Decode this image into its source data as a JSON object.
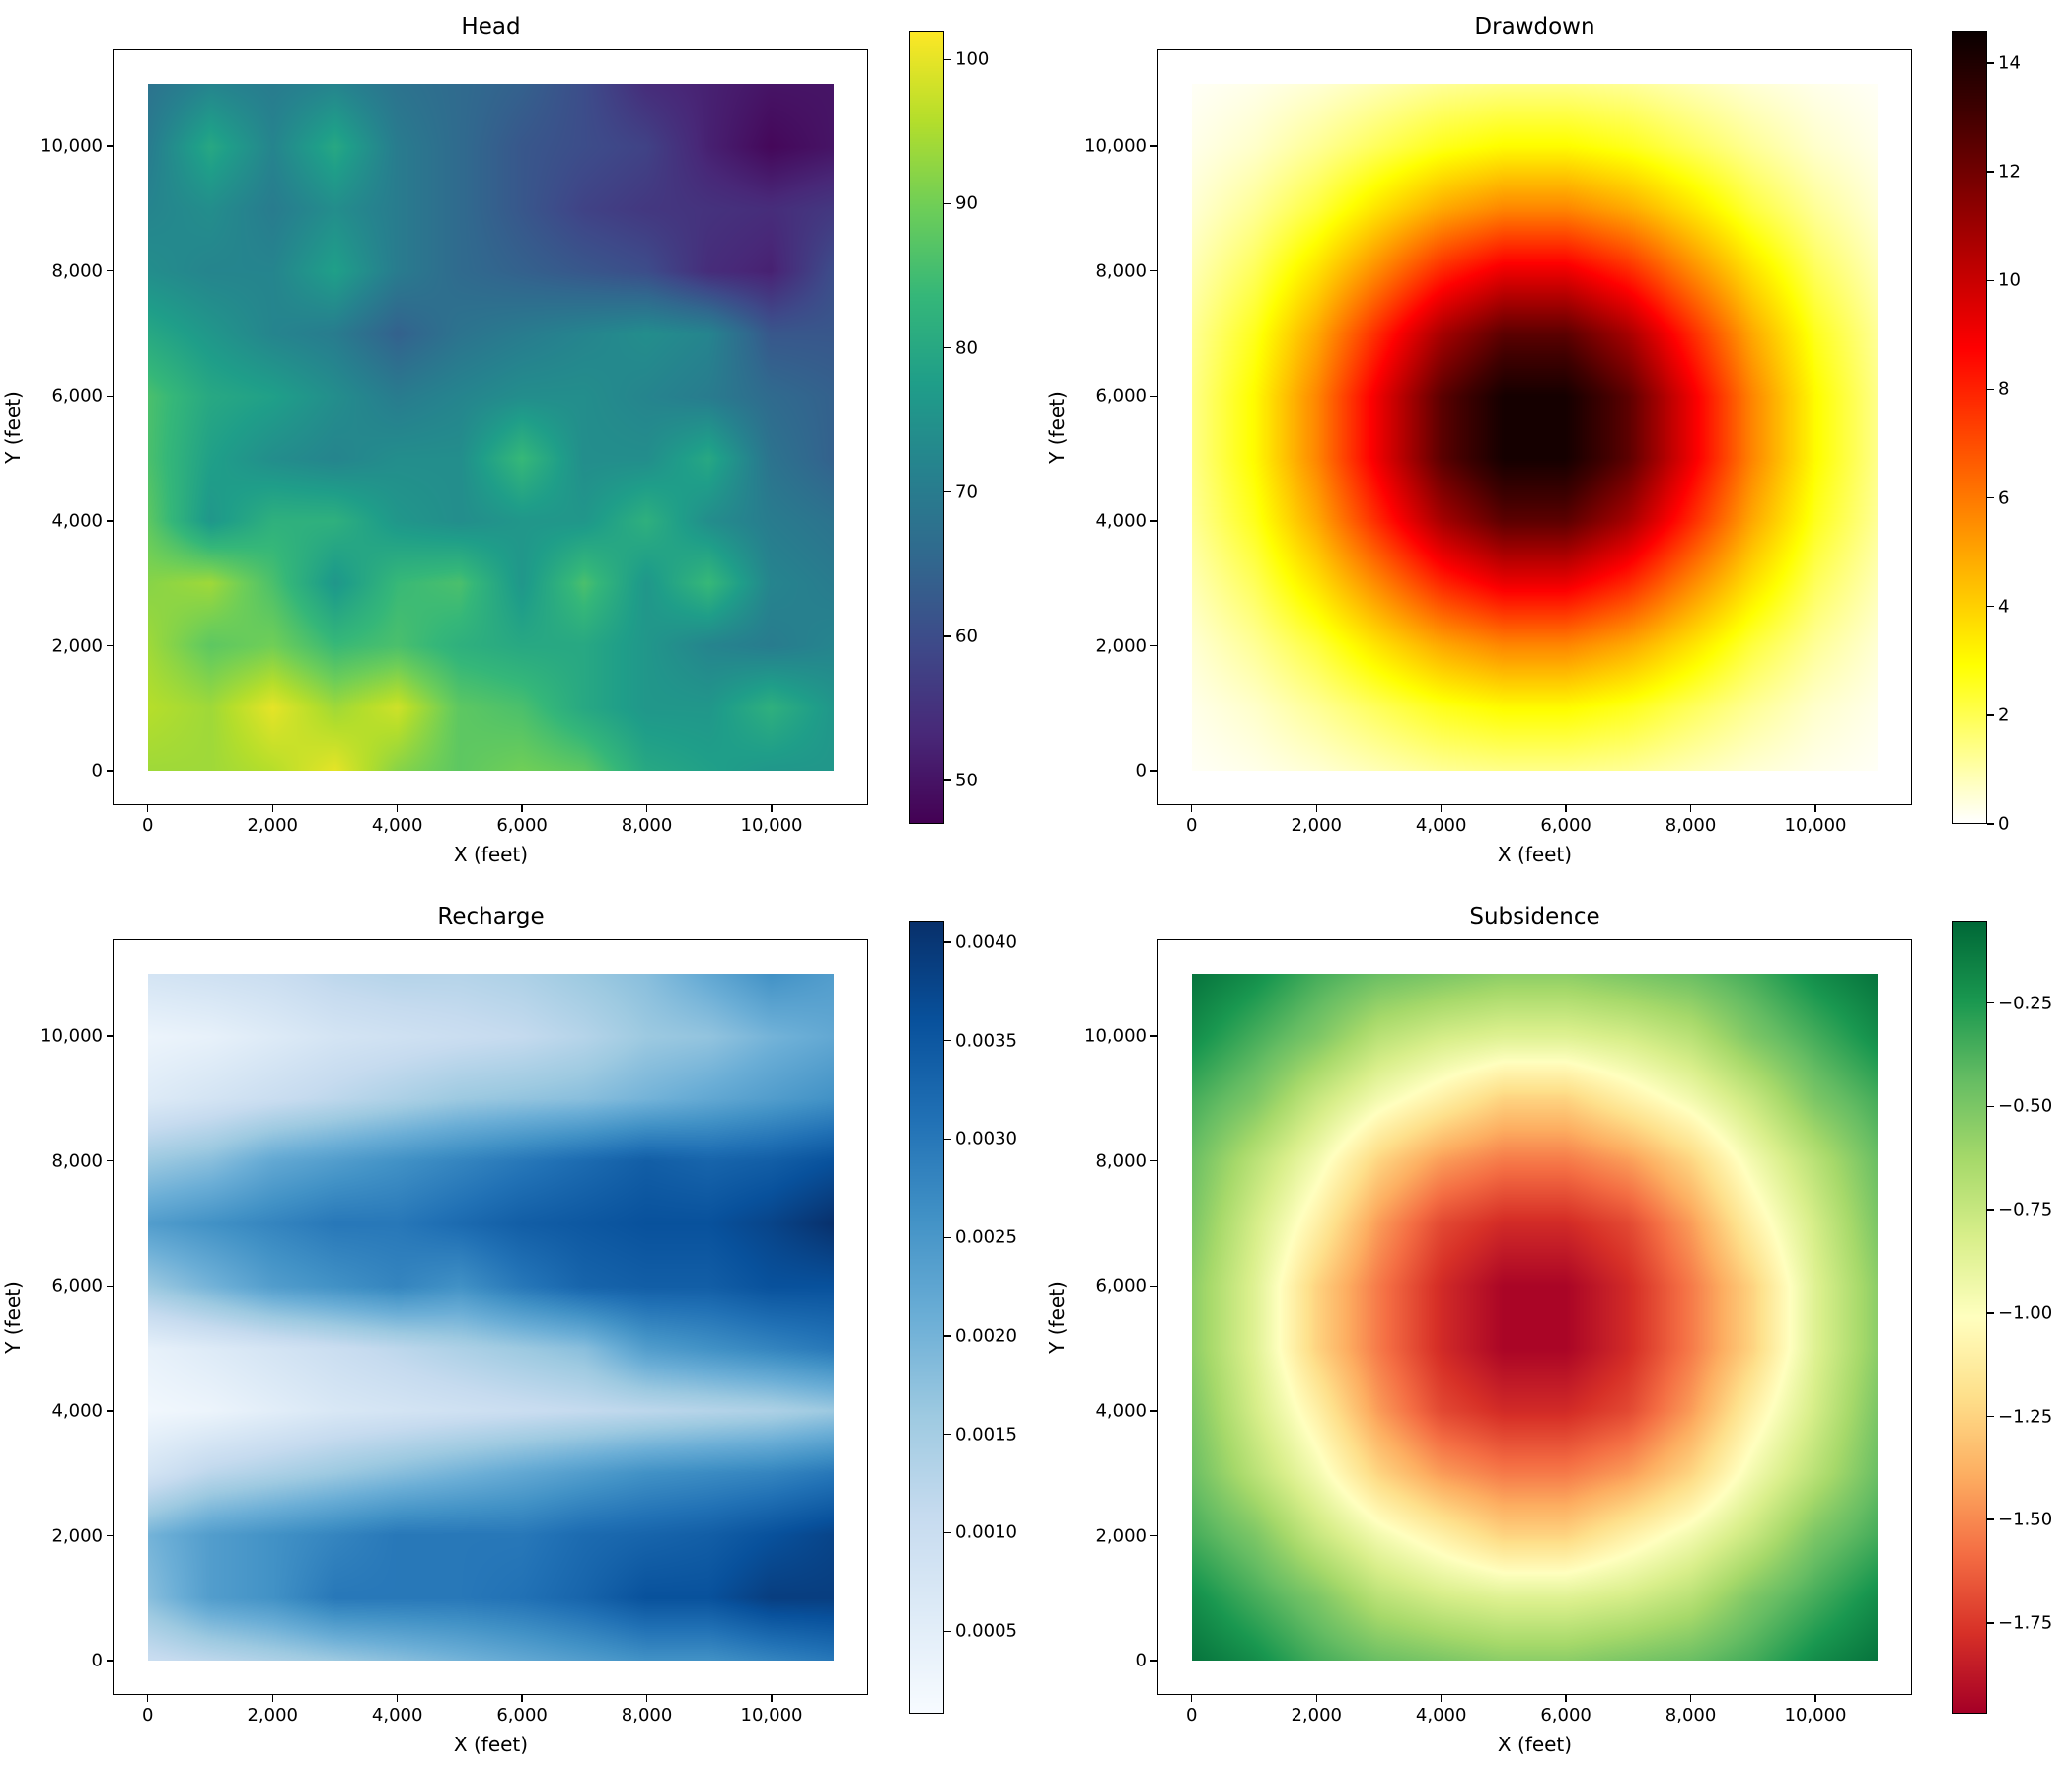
{
  "chart_data": [
    {
      "type": "heatmap",
      "title": "Head",
      "xlabel": "X (feet)",
      "ylabel": "Y (feet)",
      "xlim": [
        -550,
        11550
      ],
      "ylim": [
        -550,
        11550
      ],
      "xticks": [
        0,
        2000,
        4000,
        6000,
        8000,
        10000
      ],
      "xtick_labels": [
        "0",
        "2,000",
        "4,000",
        "6,000",
        "8,000",
        "10,000"
      ],
      "yticks": [
        0,
        2000,
        4000,
        6000,
        8000,
        10000
      ],
      "ytick_labels": [
        "0",
        "2,000",
        "4,000",
        "6,000",
        "8,000",
        "10,000"
      ],
      "colormap": "viridis",
      "clim": [
        47,
        102
      ],
      "cbar_ticks": [
        50,
        60,
        70,
        80,
        90,
        100
      ],
      "cbar_tick_labels": [
        "50",
        "60",
        "70",
        "80",
        "90",
        "100"
      ],
      "grid": false,
      "x": [
        0,
        1000,
        2000,
        3000,
        4000,
        5000,
        6000,
        7000,
        8000,
        9000,
        10000,
        11000
      ],
      "y": [
        11000,
        10000,
        9000,
        8000,
        7000,
        6000,
        5000,
        4000,
        3000,
        2000,
        1000,
        0
      ],
      "z": [
        [
          68,
          72,
          70,
          72,
          68,
          66,
          64,
          60,
          54,
          52,
          50,
          50
        ],
        [
          70,
          80,
          72,
          80,
          70,
          66,
          62,
          60,
          58,
          52,
          48,
          50
        ],
        [
          72,
          74,
          70,
          74,
          70,
          66,
          62,
          58,
          56,
          55,
          54,
          56
        ],
        [
          74,
          72,
          72,
          78,
          70,
          66,
          64,
          62,
          60,
          54,
          52,
          60
        ],
        [
          80,
          76,
          72,
          70,
          64,
          68,
          70,
          72,
          74,
          72,
          62,
          62
        ],
        [
          86,
          80,
          78,
          74,
          70,
          72,
          74,
          74,
          72,
          70,
          66,
          64
        ],
        [
          86,
          78,
          74,
          72,
          74,
          74,
          84,
          74,
          74,
          80,
          68,
          64
        ],
        [
          88,
          76,
          82,
          82,
          76,
          74,
          76,
          76,
          82,
          74,
          70,
          68
        ],
        [
          92,
          94,
          86,
          76,
          84,
          86,
          76,
          86,
          76,
          84,
          72,
          70
        ],
        [
          94,
          88,
          90,
          84,
          86,
          82,
          80,
          80,
          76,
          72,
          70,
          72
        ],
        [
          96,
          94,
          100,
          94,
          98,
          88,
          86,
          80,
          76,
          76,
          82,
          76
        ],
        [
          94,
          94,
          96,
          100,
          92,
          88,
          90,
          88,
          80,
          78,
          76,
          76
        ]
      ]
    },
    {
      "type": "heatmap",
      "title": "Drawdown",
      "xlabel": "X (feet)",
      "ylabel": "Y (feet)",
      "xlim": [
        -550,
        11550
      ],
      "ylim": [
        -550,
        11550
      ],
      "xticks": [
        0,
        2000,
        4000,
        6000,
        8000,
        10000
      ],
      "xtick_labels": [
        "0",
        "2,000",
        "4,000",
        "6,000",
        "8,000",
        "10,000"
      ],
      "yticks": [
        0,
        2000,
        4000,
        6000,
        8000,
        10000
      ],
      "ytick_labels": [
        "0",
        "2,000",
        "4,000",
        "6,000",
        "8,000",
        "10,000"
      ],
      "colormap": "hot_r",
      "clim": [
        0,
        14.6
      ],
      "cbar_ticks": [
        0,
        2,
        4,
        6,
        8,
        10,
        12,
        14
      ],
      "cbar_tick_labels": [
        "0",
        "2",
        "4",
        "6",
        "8",
        "10",
        "12",
        "14"
      ],
      "grid": false,
      "x": [
        0,
        1000,
        2000,
        3000,
        4000,
        5000,
        6000,
        7000,
        8000,
        9000,
        10000,
        11000
      ],
      "y": [
        11000,
        10000,
        9000,
        8000,
        7000,
        6000,
        5000,
        4000,
        3000,
        2000,
        1000,
        0
      ],
      "z": [
        [
          0.1,
          0.25,
          0.5,
          0.85,
          1.2,
          1.35,
          1.35,
          1.2,
          0.85,
          0.5,
          0.25,
          0.1
        ],
        [
          0.25,
          0.6,
          1.2,
          1.9,
          2.6,
          3.0,
          3.0,
          2.6,
          1.9,
          1.2,
          0.6,
          0.25
        ],
        [
          0.5,
          1.2,
          2.2,
          3.6,
          4.9,
          5.7,
          5.7,
          4.9,
          3.6,
          2.2,
          1.2,
          0.5
        ],
        [
          0.85,
          1.9,
          3.6,
          5.7,
          7.9,
          9.2,
          9.2,
          7.9,
          5.7,
          3.6,
          1.9,
          0.85
        ],
        [
          1.2,
          2.6,
          4.9,
          7.9,
          10.8,
          12.5,
          12.5,
          10.8,
          7.9,
          4.9,
          2.6,
          1.2
        ],
        [
          1.35,
          3.0,
          5.7,
          9.2,
          12.5,
          14.3,
          14.3,
          12.5,
          9.2,
          5.7,
          3.0,
          1.35
        ],
        [
          1.35,
          3.0,
          5.7,
          9.2,
          12.5,
          14.3,
          14.3,
          12.5,
          9.2,
          5.7,
          3.0,
          1.35
        ],
        [
          1.2,
          2.6,
          4.9,
          7.9,
          10.8,
          12.5,
          12.5,
          10.8,
          7.9,
          4.9,
          2.6,
          1.2
        ],
        [
          0.85,
          1.9,
          3.6,
          5.7,
          7.9,
          9.2,
          9.2,
          7.9,
          5.7,
          3.6,
          1.9,
          0.85
        ],
        [
          0.5,
          1.2,
          2.2,
          3.6,
          4.9,
          5.7,
          5.7,
          4.9,
          3.6,
          2.2,
          1.2,
          0.5
        ],
        [
          0.25,
          0.6,
          1.2,
          1.9,
          2.6,
          3.0,
          3.0,
          2.6,
          1.9,
          1.2,
          0.6,
          0.25
        ],
        [
          0.1,
          0.25,
          0.5,
          0.85,
          1.2,
          1.35,
          1.35,
          1.2,
          0.85,
          0.5,
          0.25,
          0.1
        ]
      ]
    },
    {
      "type": "heatmap",
      "title": "Recharge",
      "xlabel": "X (feet)",
      "ylabel": "Y (feet)",
      "xlim": [
        -550,
        11550
      ],
      "ylim": [
        -550,
        11550
      ],
      "xticks": [
        0,
        2000,
        4000,
        6000,
        8000,
        10000
      ],
      "xtick_labels": [
        "0",
        "2,000",
        "4,000",
        "6,000",
        "8,000",
        "10,000"
      ],
      "yticks": [
        0,
        2000,
        4000,
        6000,
        8000,
        10000
      ],
      "ytick_labels": [
        "0",
        "2,000",
        "4,000",
        "6,000",
        "8,000",
        "10,000"
      ],
      "colormap": "Blues",
      "clim": [
        8e-05,
        0.00411
      ],
      "cbar_ticks": [
        0.0005,
        0.001,
        0.0015,
        0.002,
        0.0025,
        0.003,
        0.0035,
        0.004
      ],
      "cbar_tick_labels": [
        "0.0005",
        "0.0010",
        "0.0015",
        "0.0020",
        "0.0025",
        "0.0030",
        "0.0035",
        "0.0040"
      ],
      "grid": false,
      "x": [
        0,
        1000,
        2000,
        3000,
        4000,
        5000,
        6000,
        7000,
        8000,
        9000,
        10000,
        11000
      ],
      "y": [
        11000,
        10000,
        9000,
        8000,
        7000,
        6000,
        5000,
        4000,
        3000,
        2000,
        1000,
        0
      ],
      "z": [
        [
          0.0008,
          0.0009,
          0.001,
          0.0012,
          0.0013,
          0.0013,
          0.0014,
          0.0016,
          0.0018,
          0.0022,
          0.0026,
          0.0024
        ],
        [
          0.0003,
          0.0004,
          0.0006,
          0.0008,
          0.0009,
          0.001,
          0.0011,
          0.0013,
          0.0016,
          0.0017,
          0.002,
          0.0022
        ],
        [
          0.0006,
          0.0008,
          0.001,
          0.0012,
          0.0014,
          0.0016,
          0.0017,
          0.0018,
          0.002,
          0.0022,
          0.0024,
          0.0026
        ],
        [
          0.0016,
          0.0018,
          0.0022,
          0.0024,
          0.0026,
          0.0028,
          0.003,
          0.0032,
          0.0034,
          0.0033,
          0.0034,
          0.0036
        ],
        [
          0.0024,
          0.0026,
          0.0028,
          0.003,
          0.003,
          0.0032,
          0.0034,
          0.0035,
          0.0036,
          0.0036,
          0.0038,
          0.0041
        ],
        [
          0.0016,
          0.002,
          0.0024,
          0.0026,
          0.0028,
          0.0026,
          0.003,
          0.0033,
          0.0034,
          0.0034,
          0.0036,
          0.0036
        ],
        [
          0.0004,
          0.0006,
          0.0008,
          0.001,
          0.0012,
          0.0014,
          0.0016,
          0.0018,
          0.0024,
          0.0026,
          0.0028,
          0.003
        ],
        [
          0.0002,
          0.0003,
          0.0005,
          0.0007,
          0.0008,
          0.0009,
          0.001,
          0.0011,
          0.0012,
          0.0013,
          0.0014,
          0.0016
        ],
        [
          0.0008,
          0.0012,
          0.0014,
          0.0016,
          0.0018,
          0.002,
          0.0022,
          0.0024,
          0.0026,
          0.0027,
          0.0028,
          0.003
        ],
        [
          0.002,
          0.0024,
          0.0026,
          0.0028,
          0.003,
          0.003,
          0.003,
          0.0032,
          0.0033,
          0.0034,
          0.0036,
          0.0038
        ],
        [
          0.0018,
          0.0024,
          0.0026,
          0.003,
          0.003,
          0.003,
          0.0031,
          0.0033,
          0.0036,
          0.0036,
          0.0039,
          0.0039
        ],
        [
          0.001,
          0.0012,
          0.0014,
          0.0016,
          0.0018,
          0.002,
          0.0022,
          0.0024,
          0.0026,
          0.0026,
          0.0028,
          0.003
        ]
      ]
    },
    {
      "type": "heatmap",
      "title": "Subsidence",
      "xlabel": "X (feet)",
      "ylabel": "Y (feet)",
      "xlim": [
        -550,
        11550
      ],
      "ylim": [
        -550,
        11550
      ],
      "xticks": [
        0,
        2000,
        4000,
        6000,
        8000,
        10000
      ],
      "xtick_labels": [
        "0",
        "2,000",
        "4,000",
        "6,000",
        "8,000",
        "10,000"
      ],
      "yticks": [
        0,
        2000,
        4000,
        6000,
        8000,
        10000
      ],
      "ytick_labels": [
        "0",
        "2,000",
        "4,000",
        "6,000",
        "8,000",
        "10,000"
      ],
      "colormap": "RdYlGn",
      "clim": [
        -1.97,
        -0.05
      ],
      "cbar_ticks": [
        -1.75,
        -1.5,
        -1.25,
        -1.0,
        -0.75,
        -0.5,
        -0.25
      ],
      "cbar_tick_labels": [
        "−1.75",
        "−1.50",
        "−1.25",
        "−1.00",
        "−0.75",
        "−0.50",
        "−0.25"
      ],
      "grid": false,
      "x": [
        0,
        1000,
        2000,
        3000,
        4000,
        5000,
        6000,
        7000,
        8000,
        9000,
        10000,
        11000
      ],
      "y": [
        11000,
        10000,
        9000,
        8000,
        7000,
        6000,
        5000,
        4000,
        3000,
        2000,
        1000,
        0
      ],
      "z": [
        [
          -0.1,
          -0.2,
          -0.35,
          -0.45,
          -0.5,
          -0.55,
          -0.55,
          -0.5,
          -0.45,
          -0.35,
          -0.2,
          -0.1
        ],
        [
          -0.2,
          -0.35,
          -0.5,
          -0.7,
          -0.8,
          -0.85,
          -0.85,
          -0.8,
          -0.7,
          -0.5,
          -0.35,
          -0.2
        ],
        [
          -0.35,
          -0.5,
          -0.75,
          -0.95,
          -1.1,
          -1.25,
          -1.25,
          -1.1,
          -0.95,
          -0.75,
          -0.5,
          -0.35
        ],
        [
          -0.45,
          -0.7,
          -0.95,
          -1.25,
          -1.45,
          -1.55,
          -1.55,
          -1.45,
          -1.25,
          -0.95,
          -0.7,
          -0.45
        ],
        [
          -0.5,
          -0.8,
          -1.1,
          -1.45,
          -1.7,
          -1.8,
          -1.8,
          -1.7,
          -1.45,
          -1.1,
          -0.8,
          -0.5
        ],
        [
          -0.55,
          -0.85,
          -1.25,
          -1.55,
          -1.8,
          -1.95,
          -1.95,
          -1.8,
          -1.55,
          -1.25,
          -0.85,
          -0.55
        ],
        [
          -0.55,
          -0.85,
          -1.25,
          -1.55,
          -1.8,
          -1.95,
          -1.95,
          -1.8,
          -1.55,
          -1.25,
          -0.85,
          -0.55
        ],
        [
          -0.5,
          -0.8,
          -1.1,
          -1.45,
          -1.7,
          -1.8,
          -1.8,
          -1.7,
          -1.45,
          -1.1,
          -0.8,
          -0.5
        ],
        [
          -0.45,
          -0.7,
          -0.95,
          -1.25,
          -1.45,
          -1.55,
          -1.55,
          -1.45,
          -1.25,
          -0.95,
          -0.7,
          -0.45
        ],
        [
          -0.35,
          -0.5,
          -0.75,
          -0.95,
          -1.1,
          -1.25,
          -1.25,
          -1.1,
          -0.95,
          -0.75,
          -0.5,
          -0.35
        ],
        [
          -0.2,
          -0.35,
          -0.5,
          -0.7,
          -0.8,
          -0.85,
          -0.85,
          -0.8,
          -0.7,
          -0.5,
          -0.35,
          -0.2
        ],
        [
          -0.1,
          -0.2,
          -0.35,
          -0.45,
          -0.5,
          -0.55,
          -0.55,
          -0.5,
          -0.45,
          -0.35,
          -0.2,
          -0.1
        ]
      ]
    }
  ]
}
